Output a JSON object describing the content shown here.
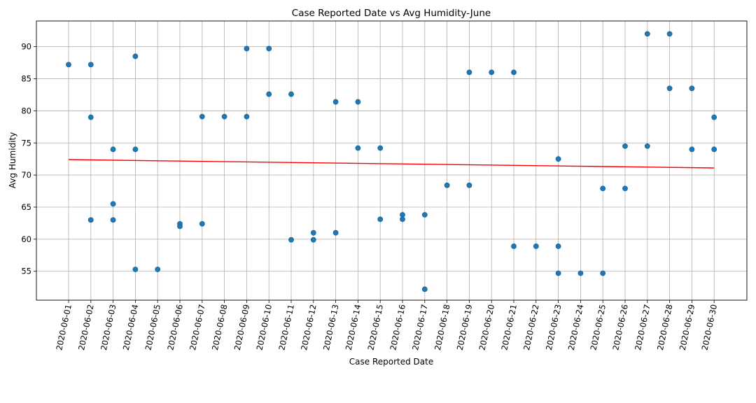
{
  "chart_data": {
    "type": "scatter",
    "title": "Case Reported Date vs Avg Humidity-June",
    "xlabel": "Case Reported Date",
    "ylabel": "Avg Humidity",
    "categories": [
      "2020-06-01",
      "2020-06-02",
      "2020-06-03",
      "2020-06-04",
      "2020-06-05",
      "2020-06-06",
      "2020-06-07",
      "2020-06-08",
      "2020-06-09",
      "2020-06-10",
      "2020-06-11",
      "2020-06-12",
      "2020-06-13",
      "2020-06-14",
      "2020-06-15",
      "2020-06-16",
      "2020-06-17",
      "2020-06-18",
      "2020-06-19",
      "2020-06-20",
      "2020-06-21",
      "2020-06-22",
      "2020-06-23",
      "2020-06-24",
      "2020-06-25",
      "2020-06-26",
      "2020-06-27",
      "2020-06-28",
      "2020-06-29",
      "2020-06-30"
    ],
    "yticks": [
      55,
      60,
      65,
      70,
      75,
      80,
      85,
      90
    ],
    "ylim": [
      50.5,
      94
    ],
    "grid": true,
    "x_tick_rotation": "vertical-ish (~80 degrees)",
    "marker_color": "#1f77b4",
    "trend_color": "#ff0000",
    "points": [
      {
        "x": "2020-06-01",
        "y": 87.2
      },
      {
        "x": "2020-06-02",
        "y": 87.2
      },
      {
        "x": "2020-06-02",
        "y": 79.0
      },
      {
        "x": "2020-06-02",
        "y": 63.0
      },
      {
        "x": "2020-06-03",
        "y": 74.0
      },
      {
        "x": "2020-06-03",
        "y": 65.5
      },
      {
        "x": "2020-06-03",
        "y": 63.0
      },
      {
        "x": "2020-06-04",
        "y": 88.5
      },
      {
        "x": "2020-06-04",
        "y": 74.0
      },
      {
        "x": "2020-06-04",
        "y": 55.3
      },
      {
        "x": "2020-06-05",
        "y": 55.3
      },
      {
        "x": "2020-06-06",
        "y": 62.4
      },
      {
        "x": "2020-06-06",
        "y": 62.0
      },
      {
        "x": "2020-06-07",
        "y": 79.1
      },
      {
        "x": "2020-06-07",
        "y": 62.4
      },
      {
        "x": "2020-06-08",
        "y": 79.1
      },
      {
        "x": "2020-06-09",
        "y": 89.7
      },
      {
        "x": "2020-06-09",
        "y": 79.1
      },
      {
        "x": "2020-06-10",
        "y": 89.7
      },
      {
        "x": "2020-06-10",
        "y": 82.6
      },
      {
        "x": "2020-06-11",
        "y": 82.6
      },
      {
        "x": "2020-06-11",
        "y": 59.9
      },
      {
        "x": "2020-06-12",
        "y": 61.0
      },
      {
        "x": "2020-06-12",
        "y": 59.9
      },
      {
        "x": "2020-06-13",
        "y": 81.4
      },
      {
        "x": "2020-06-13",
        "y": 61.0
      },
      {
        "x": "2020-06-14",
        "y": 81.4
      },
      {
        "x": "2020-06-14",
        "y": 74.2
      },
      {
        "x": "2020-06-15",
        "y": 74.2
      },
      {
        "x": "2020-06-15",
        "y": 63.1
      },
      {
        "x": "2020-06-16",
        "y": 63.8
      },
      {
        "x": "2020-06-16",
        "y": 63.1
      },
      {
        "x": "2020-06-17",
        "y": 63.8
      },
      {
        "x": "2020-06-17",
        "y": 52.2
      },
      {
        "x": "2020-06-18",
        "y": 68.4
      },
      {
        "x": "2020-06-19",
        "y": 86.0
      },
      {
        "x": "2020-06-19",
        "y": 68.4
      },
      {
        "x": "2020-06-20",
        "y": 86.0
      },
      {
        "x": "2020-06-21",
        "y": 86.0
      },
      {
        "x": "2020-06-21",
        "y": 58.9
      },
      {
        "x": "2020-06-22",
        "y": 58.9
      },
      {
        "x": "2020-06-23",
        "y": 72.5
      },
      {
        "x": "2020-06-23",
        "y": 58.9
      },
      {
        "x": "2020-06-23",
        "y": 54.7
      },
      {
        "x": "2020-06-24",
        "y": 54.7
      },
      {
        "x": "2020-06-25",
        "y": 67.9
      },
      {
        "x": "2020-06-25",
        "y": 54.7
      },
      {
        "x": "2020-06-26",
        "y": 74.5
      },
      {
        "x": "2020-06-26",
        "y": 67.9
      },
      {
        "x": "2020-06-27",
        "y": 92.0
      },
      {
        "x": "2020-06-27",
        "y": 74.5
      },
      {
        "x": "2020-06-28",
        "y": 92.0
      },
      {
        "x": "2020-06-28",
        "y": 83.5
      },
      {
        "x": "2020-06-29",
        "y": 83.5
      },
      {
        "x": "2020-06-29",
        "y": 74.0
      },
      {
        "x": "2020-06-30",
        "y": 79.0
      },
      {
        "x": "2020-06-30",
        "y": 74.0
      }
    ],
    "trendline": {
      "x": [
        "2020-06-01",
        "2020-06-30"
      ],
      "y": [
        72.4,
        71.1
      ]
    }
  }
}
